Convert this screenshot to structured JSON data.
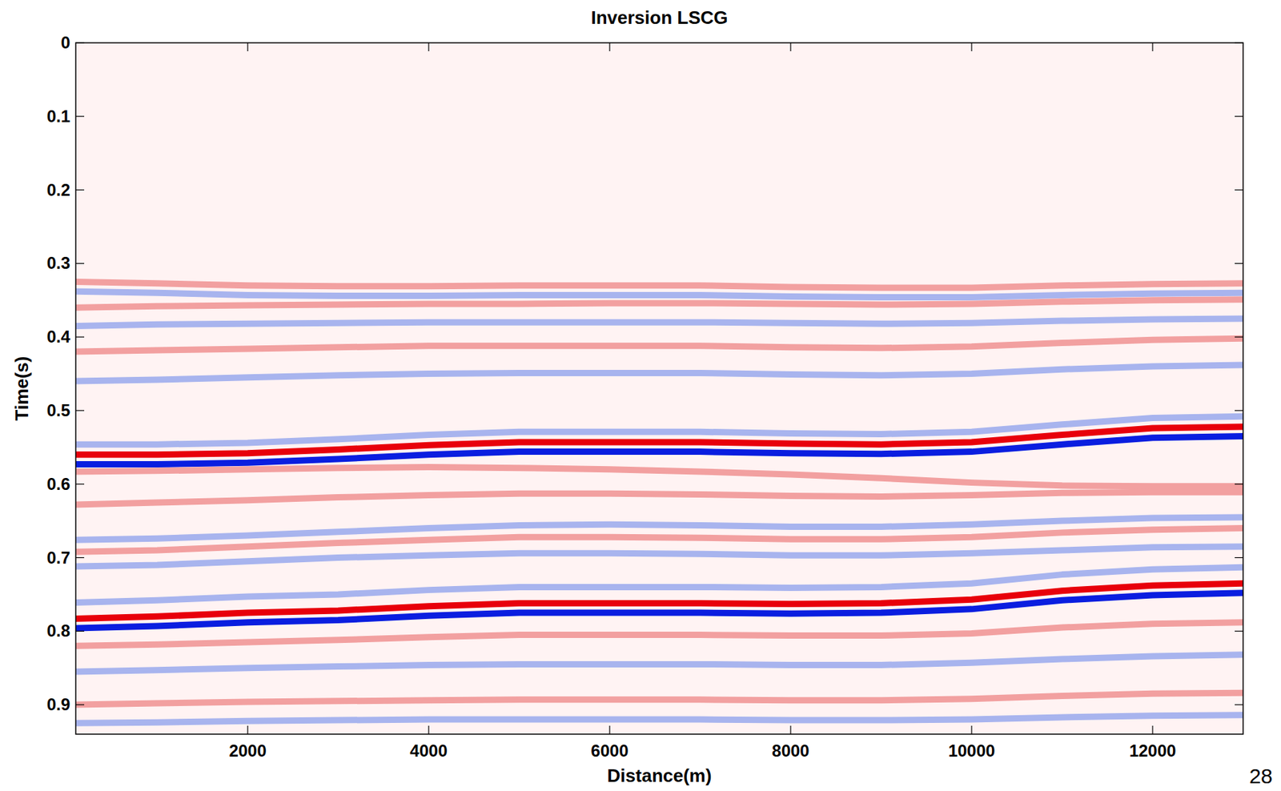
{
  "chart_data": {
    "type": "line",
    "title": "Inversion LSCG",
    "x_label": "Distance(m)",
    "y_label": "Time(s)",
    "annotations": [
      "28"
    ],
    "x": [
      100,
      1000,
      2000,
      3000,
      4000,
      5000,
      6000,
      7000,
      8000,
      9000,
      10000,
      11000,
      12000,
      13000
    ],
    "xlim": [
      100,
      13000
    ],
    "xticks": [
      2000,
      4000,
      6000,
      8000,
      10000,
      12000
    ],
    "ylim": [
      0,
      0.94
    ],
    "yticks": [
      0,
      0.1,
      0.2,
      0.3,
      0.4,
      0.5,
      0.6,
      0.7,
      0.8,
      0.9
    ],
    "series": [
      {
        "color": "#f2a0a0",
        "values": [
          0.325,
          0.327,
          0.33,
          0.331,
          0.331,
          0.33,
          0.33,
          0.33,
          0.332,
          0.333,
          0.333,
          0.33,
          0.328,
          0.327
        ]
      },
      {
        "color": "#a8b4ee",
        "values": [
          0.338,
          0.34,
          0.343,
          0.344,
          0.344,
          0.343,
          0.343,
          0.343,
          0.345,
          0.346,
          0.346,
          0.343,
          0.341,
          0.34
        ]
      },
      {
        "color": "#f2a0a0",
        "values": [
          0.36,
          0.358,
          0.357,
          0.356,
          0.355,
          0.355,
          0.354,
          0.354,
          0.355,
          0.356,
          0.355,
          0.352,
          0.35,
          0.349
        ]
      },
      {
        "color": "#a8b4ee",
        "values": [
          0.385,
          0.383,
          0.382,
          0.381,
          0.38,
          0.38,
          0.38,
          0.38,
          0.381,
          0.382,
          0.381,
          0.378,
          0.376,
          0.375
        ]
      },
      {
        "color": "#f2a0a0",
        "values": [
          0.42,
          0.418,
          0.416,
          0.414,
          0.412,
          0.412,
          0.412,
          0.412,
          0.414,
          0.415,
          0.413,
          0.408,
          0.404,
          0.402
        ]
      },
      {
        "color": "#a8b4ee",
        "values": [
          0.46,
          0.458,
          0.455,
          0.452,
          0.45,
          0.449,
          0.449,
          0.449,
          0.451,
          0.452,
          0.45,
          0.444,
          0.44,
          0.438
        ]
      },
      {
        "color": "#a8b4ee",
        "values": [
          0.546,
          0.546,
          0.544,
          0.539,
          0.533,
          0.529,
          0.529,
          0.529,
          0.531,
          0.532,
          0.529,
          0.519,
          0.51,
          0.508
        ]
      },
      {
        "color": "#e8000b",
        "values": [
          0.56,
          0.56,
          0.558,
          0.553,
          0.547,
          0.543,
          0.543,
          0.543,
          0.545,
          0.546,
          0.543,
          0.533,
          0.524,
          0.522
        ]
      },
      {
        "color": "#0a1ee0",
        "values": [
          0.573,
          0.573,
          0.571,
          0.566,
          0.56,
          0.556,
          0.556,
          0.556,
          0.558,
          0.559,
          0.556,
          0.546,
          0.537,
          0.535
        ]
      },
      {
        "color": "#f2a0a0",
        "values": [
          0.583,
          0.582,
          0.58,
          0.578,
          0.577,
          0.578,
          0.58,
          0.583,
          0.587,
          0.592,
          0.598,
          0.602,
          0.603,
          0.603
        ]
      },
      {
        "color": "#f2a0a0",
        "values": [
          0.628,
          0.625,
          0.622,
          0.618,
          0.615,
          0.613,
          0.613,
          0.614,
          0.616,
          0.617,
          0.615,
          0.612,
          0.611,
          0.611
        ]
      },
      {
        "color": "#a8b4ee",
        "values": [
          0.676,
          0.674,
          0.67,
          0.665,
          0.66,
          0.656,
          0.655,
          0.656,
          0.658,
          0.658,
          0.655,
          0.65,
          0.646,
          0.645
        ]
      },
      {
        "color": "#f2a0a0",
        "values": [
          0.692,
          0.69,
          0.685,
          0.68,
          0.676,
          0.672,
          0.672,
          0.673,
          0.675,
          0.675,
          0.672,
          0.666,
          0.662,
          0.66
        ]
      },
      {
        "color": "#a8b4ee",
        "values": [
          0.712,
          0.71,
          0.705,
          0.7,
          0.697,
          0.694,
          0.694,
          0.695,
          0.697,
          0.697,
          0.694,
          0.69,
          0.686,
          0.685
        ]
      },
      {
        "color": "#a8b4ee",
        "values": [
          0.761,
          0.758,
          0.753,
          0.75,
          0.744,
          0.74,
          0.74,
          0.74,
          0.741,
          0.74,
          0.735,
          0.723,
          0.716,
          0.713
        ]
      },
      {
        "color": "#e8000b",
        "values": [
          0.783,
          0.78,
          0.775,
          0.772,
          0.766,
          0.762,
          0.762,
          0.762,
          0.763,
          0.762,
          0.757,
          0.745,
          0.738,
          0.735
        ]
      },
      {
        "color": "#0a1ee0",
        "values": [
          0.796,
          0.793,
          0.788,
          0.785,
          0.779,
          0.775,
          0.775,
          0.775,
          0.776,
          0.775,
          0.77,
          0.758,
          0.751,
          0.748
        ]
      },
      {
        "color": "#f2a0a0",
        "values": [
          0.82,
          0.818,
          0.815,
          0.812,
          0.808,
          0.805,
          0.805,
          0.805,
          0.806,
          0.806,
          0.803,
          0.795,
          0.79,
          0.788
        ]
      },
      {
        "color": "#a8b4ee",
        "values": [
          0.855,
          0.853,
          0.85,
          0.848,
          0.846,
          0.845,
          0.845,
          0.845,
          0.846,
          0.846,
          0.843,
          0.838,
          0.834,
          0.832
        ]
      },
      {
        "color": "#f2a0a0",
        "values": [
          0.9,
          0.898,
          0.896,
          0.895,
          0.894,
          0.893,
          0.893,
          0.893,
          0.894,
          0.894,
          0.892,
          0.888,
          0.885,
          0.884
        ]
      },
      {
        "color": "#a8b4ee",
        "values": [
          0.925,
          0.924,
          0.922,
          0.921,
          0.92,
          0.92,
          0.92,
          0.92,
          0.921,
          0.921,
          0.92,
          0.917,
          0.915,
          0.914
        ]
      }
    ]
  }
}
